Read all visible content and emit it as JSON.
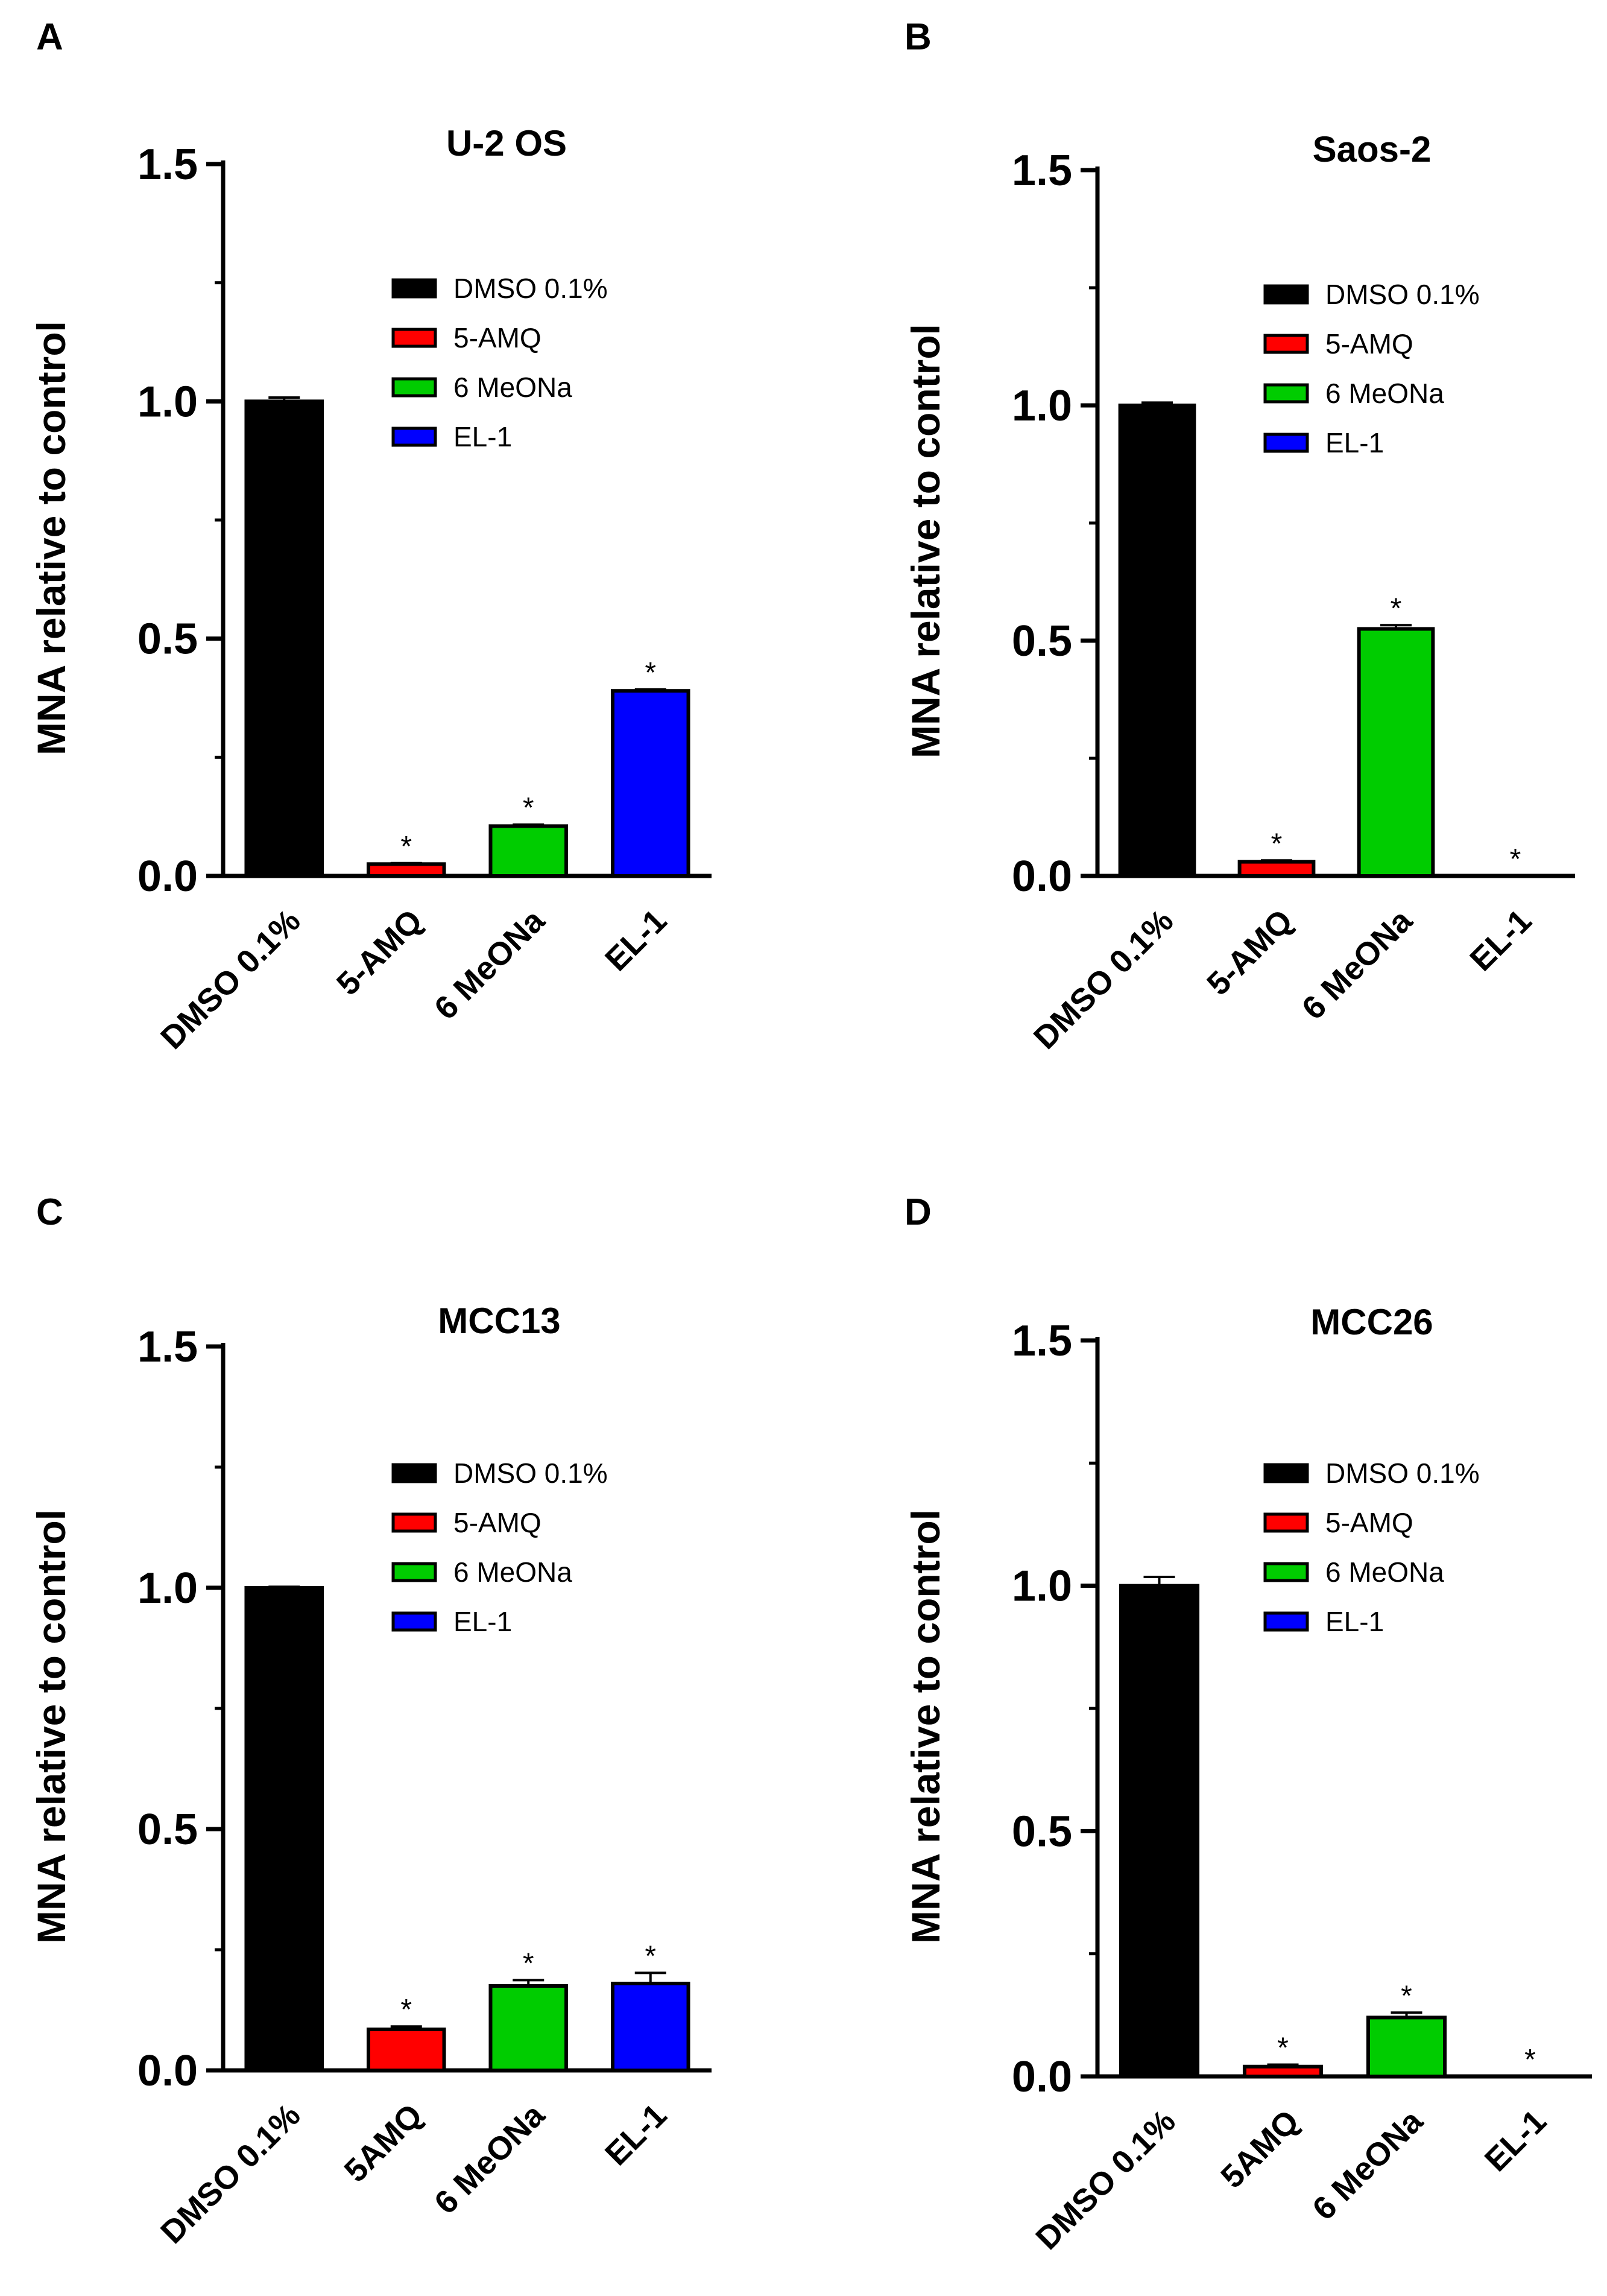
{
  "colors": {
    "DMSO 0.1%": "#000000",
    "5-AMQ": "#ff0000",
    "6 MeONa": "#00cc00",
    "EL-1": "#0000ff",
    "axis": "#000000"
  },
  "chart_data": [
    {
      "panel": "A",
      "type": "bar",
      "title": "U-2 OS",
      "ylabel": "MNA relative to control",
      "xlabel": "",
      "ylim": [
        0,
        1.5
      ],
      "yticks": [
        "0.0",
        "0.5",
        "1.0",
        "1.5"
      ],
      "categories": [
        "DMSO 0.1%",
        "5-AMQ",
        "6 MeONa",
        "EL-1"
      ],
      "legend": [
        "DMSO 0.1%",
        "5-AMQ",
        "6 MeONa",
        "EL-1"
      ],
      "legend_position": "top-right",
      "values": [
        1.0,
        0.025,
        0.105,
        0.39
      ],
      "errors": [
        0.008,
        0.002,
        0.003,
        0.003
      ],
      "significance": [
        "",
        "*",
        "*",
        "*"
      ]
    },
    {
      "panel": "B",
      "type": "bar",
      "title": "Saos-2",
      "ylabel": "MNA relative to control",
      "xlabel": "",
      "ylim": [
        0,
        1.5
      ],
      "yticks": [
        "0.0",
        "0.5",
        "1.0",
        "1.5"
      ],
      "categories": [
        "DMSO 0.1%",
        "5-AMQ",
        "6 MeONa",
        "EL-1"
      ],
      "legend": [
        "DMSO 0.1%",
        "5-AMQ",
        "6 MeONa",
        "EL-1"
      ],
      "legend_position": "top-right",
      "values": [
        1.0,
        0.03,
        0.525,
        0.0
      ],
      "errors": [
        0.006,
        0.003,
        0.008,
        0.0
      ],
      "significance": [
        "",
        "*",
        "*",
        "*"
      ]
    },
    {
      "panel": "C",
      "type": "bar",
      "title": "MCC13",
      "ylabel": "MNA relative to control",
      "xlabel": "",
      "ylim": [
        0,
        1.5
      ],
      "yticks": [
        "0.0",
        "0.5",
        "1.0",
        "1.5"
      ],
      "categories": [
        "DMSO 0.1%",
        "5AMQ",
        "6 MeONa",
        "EL-1"
      ],
      "legend": [
        "DMSO 0.1%",
        "5-AMQ",
        "6 MeONa",
        "EL-1"
      ],
      "legend_position": "top-right",
      "values": [
        1.0,
        0.085,
        0.175,
        0.18
      ],
      "errors": [
        0.002,
        0.006,
        0.012,
        0.022
      ],
      "significance": [
        "",
        "*",
        "*",
        "*"
      ]
    },
    {
      "panel": "D",
      "type": "bar",
      "title": "MCC26",
      "ylabel": "MNA relative to control",
      "xlabel": "",
      "ylim": [
        0,
        1.5
      ],
      "yticks": [
        "0.0",
        "0.5",
        "1.0",
        "1.5"
      ],
      "categories": [
        "DMSO 0.1%",
        "5AMQ",
        "6 MeONa",
        "EL-1"
      ],
      "legend": [
        "DMSO 0.1%",
        "5-AMQ",
        "6 MeONa",
        "EL-1"
      ],
      "legend_position": "top-right",
      "values": [
        1.0,
        0.02,
        0.12,
        0.0
      ],
      "errors": [
        0.018,
        0.004,
        0.01,
        0.0
      ],
      "significance": [
        "",
        "*",
        "*",
        "*"
      ]
    }
  ]
}
